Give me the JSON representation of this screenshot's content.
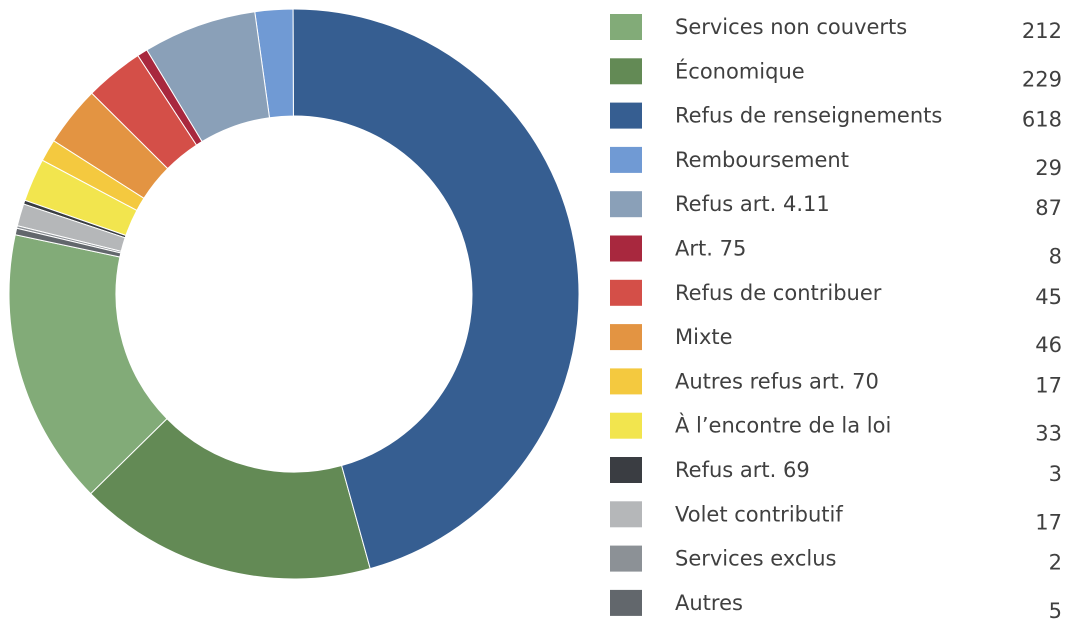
{
  "chart_data": {
    "type": "pie",
    "categories": [
      "Services non couverts",
      "Économique",
      "Refus de renseignements",
      "Remboursement",
      "Refus art. 4.11",
      "Art. 75",
      "Refus de contribuer",
      "Mixte",
      "Autres refus art. 70",
      "À l’encontre de la loi",
      "Refus art. 69",
      "Volet contributif",
      "Services exclus",
      "Autres"
    ],
    "values": [
      212,
      229,
      618,
      29,
      87,
      8,
      45,
      46,
      17,
      33,
      3,
      17,
      2,
      5
    ],
    "colors": [
      "#82ab78",
      "#638a55",
      "#365e91",
      "#709ad4",
      "#8aa0b8",
      "#a8283e",
      "#d44f48",
      "#e39442",
      "#f4c93f",
      "#f2e54e",
      "#3a3d42",
      "#b5b7b9",
      "#8c9196",
      "#62676c"
    ],
    "legend": "right"
  }
}
